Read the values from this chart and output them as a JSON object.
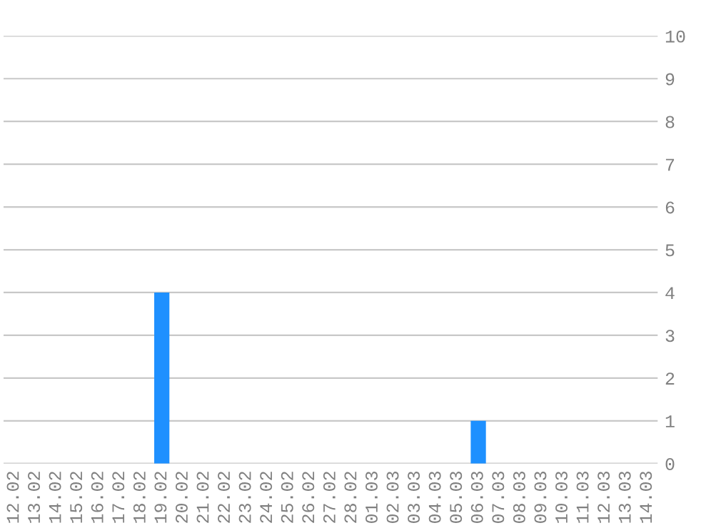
{
  "chart_data": {
    "type": "bar",
    "categories": [
      "12.02",
      "13.02",
      "14.02",
      "15.02",
      "16.02",
      "17.02",
      "18.02",
      "19.02",
      "20.02",
      "21.02",
      "22.02",
      "23.02",
      "24.02",
      "25.02",
      "26.02",
      "27.02",
      "28.02",
      "01.03",
      "02.03",
      "03.03",
      "04.03",
      "05.03",
      "06.03",
      "07.03",
      "08.03",
      "09.03",
      "10.03",
      "11.03",
      "12.03",
      "13.03",
      "14.03"
    ],
    "values": [
      0,
      0,
      0,
      0,
      0,
      0,
      0,
      4,
      0,
      0,
      0,
      0,
      0,
      0,
      0,
      0,
      0,
      0,
      0,
      0,
      0,
      0,
      1,
      0,
      0,
      0,
      0,
      0,
      0,
      0,
      0
    ],
    "color": "#1e90ff",
    "ylim": [
      0,
      10
    ],
    "yticks": [
      0,
      1,
      2,
      3,
      4,
      5,
      6,
      7,
      8,
      9,
      10
    ],
    "grid": "y"
  }
}
